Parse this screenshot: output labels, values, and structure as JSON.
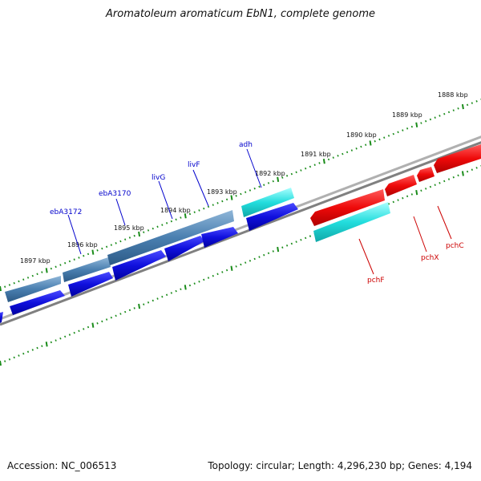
{
  "title": "Aromatoleum aromaticum EbN1, complete genome",
  "footer": {
    "accession": "Accession: NC_006513",
    "summary": "Topology: circular; Length: 4,296,230 bp; Genes: 4,194"
  },
  "kbp_labels": [
    "1888 kbp",
    "1889 kbp",
    "1890 kbp",
    "1891 kbp",
    "1892 kbp",
    "1893 kbp",
    "1894 kbp",
    "1895 kbp",
    "1896 kbp",
    "1897 kbp"
  ],
  "colors": {
    "backbone": "#888888",
    "tick": "#1a8c1a",
    "cds_forward": "#1010dd",
    "gene_forward": "#4a7fb0",
    "cds_reverse": "#ee0a0a",
    "gene_reverse_cyan": "#22dddd",
    "label_forward": "#0000cc",
    "label_reverse": "#cc0000"
  },
  "gene_labels_top": [
    "ebA3172",
    "ebA3170",
    "livG",
    "livF",
    "adh"
  ],
  "gene_labels_bottom": [
    "pchF",
    "pchX",
    "pchC"
  ]
}
